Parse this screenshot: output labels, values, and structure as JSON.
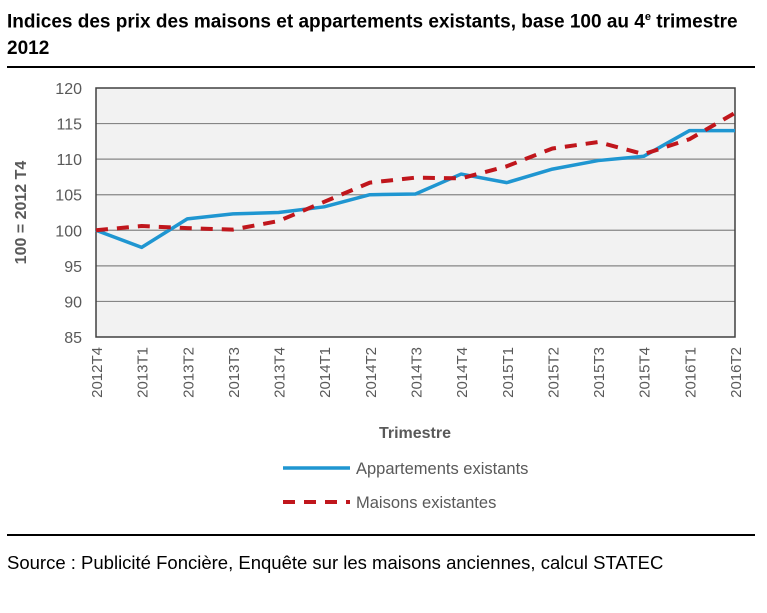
{
  "title_main": "Indices des prix des maisons et appartements existants, base 100 au 4",
  "title_sup": "e",
  "title_end": "trimestre 2012",
  "source": "Source : Publicité Foncière, Enquête sur les maisons anciennes, calcul STATEC",
  "chart_data": {
    "type": "line",
    "xlabel": "Trimestre",
    "ylabel": "100 = 2012 T4",
    "ylim": [
      85,
      120
    ],
    "yticks": [
      85,
      90,
      95,
      100,
      105,
      110,
      115,
      120
    ],
    "grid": true,
    "legend": "bottom",
    "categories": [
      "2012T4",
      "2013T1",
      "2013T2",
      "2013T3",
      "2013T4",
      "2014T1",
      "2014T2",
      "2014T3",
      "2014T4",
      "2015T1",
      "2015T2",
      "2015T3",
      "2015T4",
      "2016T1",
      "2016T2"
    ],
    "series": [
      {
        "name": "Appartements existants",
        "color": "#1f96d1",
        "dash": false,
        "values": [
          100,
          97.6,
          101.6,
          102.3,
          102.5,
          103.3,
          105.0,
          105.1,
          107.9,
          106.7,
          108.6,
          109.8,
          110.4,
          114.0,
          114.0
        ]
      },
      {
        "name": "Maisons existantes",
        "color": "#c0161c",
        "dash": true,
        "values": [
          100,
          100.6,
          100.3,
          100.1,
          101.3,
          104.0,
          106.7,
          107.4,
          107.3,
          109.0,
          111.5,
          112.4,
          110.7,
          112.8,
          116.5
        ]
      }
    ]
  }
}
